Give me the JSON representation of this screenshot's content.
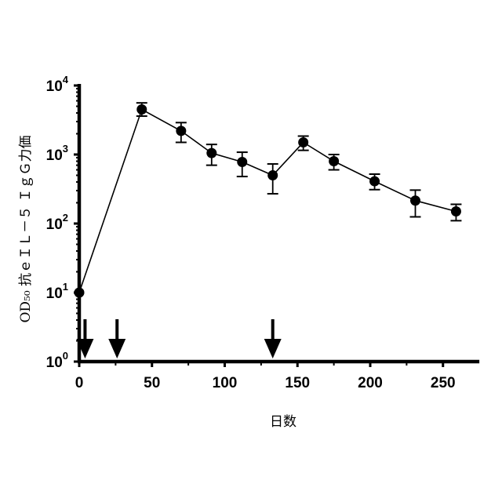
{
  "chart_data": {
    "type": "line",
    "xlabel": "日数",
    "ylabel": "OD₅₀ 抗ｅＩＬ－５ ＩｇＧ力価",
    "xlim": [
      0,
      275
    ],
    "ylim": [
      1,
      10000
    ],
    "yscale": "log",
    "x_ticks": [
      0,
      50,
      100,
      150,
      200,
      250
    ],
    "y_ticks": [
      {
        "value": 1,
        "base": "10",
        "exp": "0"
      },
      {
        "value": 10,
        "base": "10",
        "exp": "1"
      },
      {
        "value": 100,
        "base": "10",
        "exp": "2"
      },
      {
        "value": 1000,
        "base": "10",
        "exp": "3"
      },
      {
        "value": 10000,
        "base": "10",
        "exp": "4"
      }
    ],
    "grid": false,
    "series": [
      {
        "points": [
          {
            "x": 0,
            "y": 10,
            "lo": 10,
            "hi": 10
          },
          {
            "x": 43,
            "y": 4500,
            "lo": 3600,
            "hi": 5600
          },
          {
            "x": 70,
            "y": 2200,
            "lo": 1500,
            "hi": 2900
          },
          {
            "x": 91,
            "y": 1050,
            "lo": 700,
            "hi": 1400
          },
          {
            "x": 112,
            "y": 780,
            "lo": 480,
            "hi": 1080
          },
          {
            "x": 133,
            "y": 500,
            "lo": 270,
            "hi": 730
          },
          {
            "x": 154,
            "y": 1500,
            "lo": 1150,
            "hi": 1850
          },
          {
            "x": 175,
            "y": 800,
            "lo": 600,
            "hi": 1000
          },
          {
            "x": 203,
            "y": 410,
            "lo": 310,
            "hi": 520
          },
          {
            "x": 231,
            "y": 215,
            "lo": 125,
            "hi": 305
          },
          {
            "x": 259,
            "y": 150,
            "lo": 110,
            "hi": 190
          }
        ]
      }
    ],
    "annotations": {
      "type": "arrows",
      "direction": "down",
      "x": [
        4,
        26,
        133
      ]
    }
  }
}
